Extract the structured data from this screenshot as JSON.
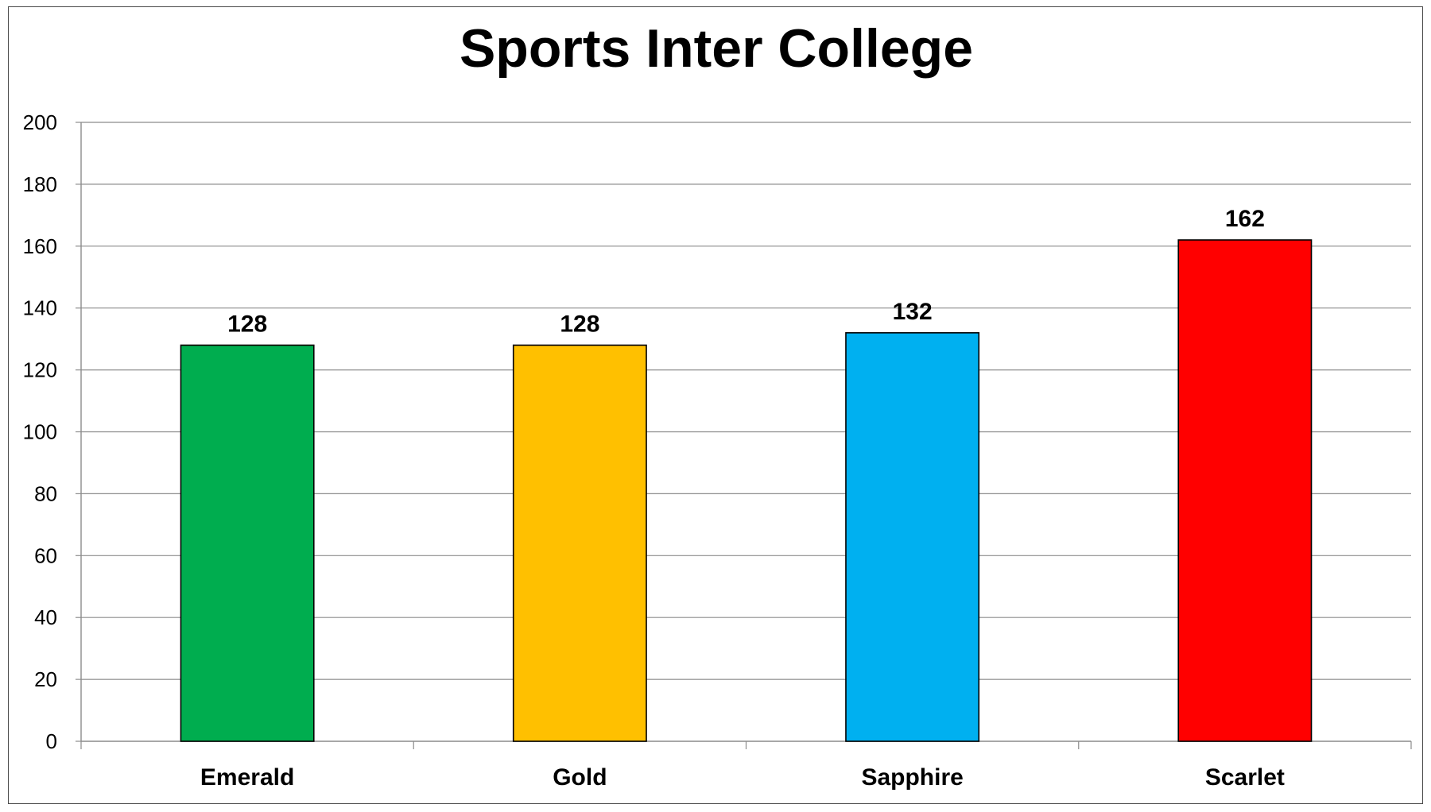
{
  "chart_data": {
    "type": "bar",
    "title": "Sports Inter College",
    "xlabel": "",
    "ylabel": "",
    "categories": [
      "Emerald",
      "Gold",
      "Sapphire",
      "Scarlet"
    ],
    "values": [
      128,
      128,
      132,
      162
    ],
    "data_labels": [
      "128",
      "128",
      "132",
      "162"
    ],
    "colors": [
      "#00AD4F",
      "#FFC000",
      "#00B0F0",
      "#FF0000"
    ],
    "ylim": [
      0,
      200
    ],
    "yticks": [
      0,
      20,
      40,
      60,
      80,
      100,
      120,
      140,
      160,
      180,
      200
    ],
    "ytick_labels": [
      "0",
      "20",
      "40",
      "60",
      "80",
      "100",
      "120",
      "140",
      "160",
      "180",
      "200"
    ],
    "grid": true,
    "legend": "none"
  }
}
